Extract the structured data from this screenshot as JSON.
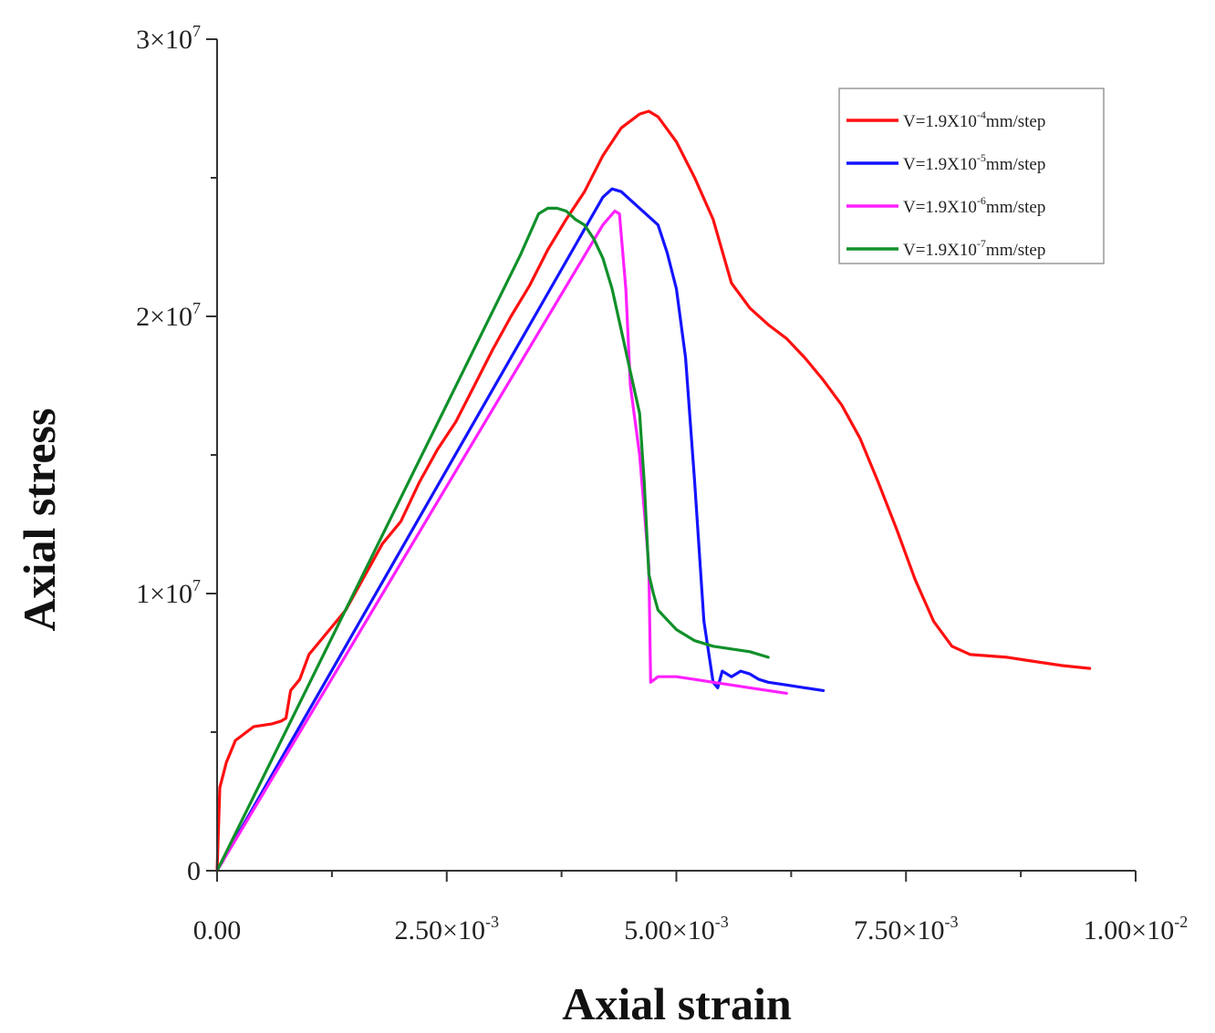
{
  "chart_data": {
    "type": "line",
    "title": "",
    "xlabel": "Axial strain",
    "ylabel": "Axial stress",
    "xlim": [
      0,
      0.01
    ],
    "ylim": [
      0,
      30000000
    ],
    "x_ticks": [
      {
        "value": 0,
        "mant": "0.00",
        "exp": ""
      },
      {
        "value": 0.0025,
        "mant": "2.50×10",
        "exp": "-3"
      },
      {
        "value": 0.005,
        "mant": "5.00×10",
        "exp": "-3"
      },
      {
        "value": 0.0075,
        "mant": "7.50×10",
        "exp": "-3"
      },
      {
        "value": 0.01,
        "mant": "1.00×10",
        "exp": "-2"
      }
    ],
    "y_ticks": [
      {
        "value": 0,
        "mant": "0",
        "exp": ""
      },
      {
        "value": 10000000,
        "mant": "1×10",
        "exp": "7"
      },
      {
        "value": 20000000,
        "mant": "2×10",
        "exp": "7"
      },
      {
        "value": 30000000,
        "mant": "3×10",
        "exp": "7"
      }
    ],
    "legend_position": "top-right",
    "series": [
      {
        "name": "V=1.9X10-4mm/step",
        "label_pre": "V=1.9X10",
        "label_exp": "-4",
        "label_post": "mm/step",
        "color": "#ff1010",
        "x": [
          0,
          3e-05,
          0.0001,
          0.0002,
          0.0004,
          0.0006,
          0.0007,
          0.00075,
          0.0008,
          0.0009,
          0.001,
          0.0012,
          0.0014,
          0.0016,
          0.0018,
          0.002,
          0.0022,
          0.0024,
          0.0026,
          0.0028,
          0.003,
          0.0032,
          0.0034,
          0.0036,
          0.0038,
          0.004,
          0.0042,
          0.0044,
          0.0046,
          0.0047,
          0.0048,
          0.005,
          0.0052,
          0.0054,
          0.0056,
          0.0058,
          0.006,
          0.0062,
          0.0064,
          0.0066,
          0.0068,
          0.007,
          0.0072,
          0.0074,
          0.0076,
          0.0078,
          0.008,
          0.0082,
          0.0084,
          0.0086,
          0.0088,
          0.009,
          0.0092,
          0.0095
        ],
        "y": [
          0,
          3000000,
          3900000,
          4700000,
          5200000,
          5300000,
          5400000,
          5500000,
          6500000,
          6900000,
          7800000,
          8600000,
          9400000,
          10600000,
          11800000,
          12600000,
          14000000,
          15200000,
          16200000,
          17500000,
          18800000,
          20000000,
          21100000,
          22400000,
          23500000,
          24500000,
          25800000,
          26800000,
          27300000,
          27400000,
          27200000,
          26300000,
          25000000,
          23500000,
          21200000,
          20300000,
          19700000,
          19200000,
          18500000,
          17700000,
          16800000,
          15600000,
          14000000,
          12300000,
          10500000,
          9000000,
          8100000,
          7800000,
          7750000,
          7700000,
          7600000,
          7500000,
          7400000,
          7300000
        ]
      },
      {
        "name": "V=1.9X10-5mm/step",
        "label_pre": "V=1.9X10",
        "label_exp": "-5",
        "label_post": "mm/step",
        "color": "#1414ff",
        "x": [
          0,
          0.0042,
          0.0043,
          0.0044,
          0.0045,
          0.0046,
          0.0047,
          0.0048,
          0.0049,
          0.005,
          0.0051,
          0.0052,
          0.0053,
          0.0054,
          0.00545,
          0.0055,
          0.0056,
          0.0057,
          0.0058,
          0.0059,
          0.006,
          0.0062,
          0.0064,
          0.0066
        ],
        "y": [
          0,
          24300000,
          24600000,
          24500000,
          24200000,
          23900000,
          23600000,
          23300000,
          22300000,
          21000000,
          18500000,
          14000000,
          9000000,
          6800000,
          6600000,
          7200000,
          7000000,
          7200000,
          7100000,
          6900000,
          6800000,
          6700000,
          6600000,
          6500000
        ]
      },
      {
        "name": "V=1.9X10-6mm/step",
        "label_pre": "V=1.9X10",
        "label_exp": "-6",
        "label_post": "mm/step",
        "color": "#ff20ff",
        "x": [
          0,
          0.0042,
          0.00433,
          0.00438,
          0.00445,
          0.0045,
          0.0046,
          0.00465,
          0.0047,
          0.00472,
          0.0048,
          0.005,
          0.0052,
          0.0054,
          0.0056,
          0.0058,
          0.006,
          0.0062
        ],
        "y": [
          0,
          23300000,
          23800000,
          23700000,
          21000000,
          17500000,
          15000000,
          13000000,
          11000000,
          6800000,
          7000000,
          7000000,
          6900000,
          6800000,
          6700000,
          6600000,
          6500000,
          6400000
        ],
        "note_unused": false
      },
      {
        "name": "V=1.9X10-7mm/step",
        "label_pre": "V=1.9X10",
        "label_exp": "-7",
        "label_post": "mm/step",
        "color": "#10902a",
        "x": [
          0,
          0.0033,
          0.0035,
          0.0036,
          0.0037,
          0.0038,
          0.0039,
          0.004,
          0.0041,
          0.0042,
          0.0043,
          0.0044,
          0.0045,
          0.0046,
          0.00465,
          0.0047,
          0.00475,
          0.0048,
          0.005,
          0.0052,
          0.0054,
          0.0056,
          0.0058,
          0.006
        ],
        "y": [
          0,
          22200000,
          23700000,
          23900000,
          23900000,
          23800000,
          23500000,
          23300000,
          22800000,
          22100000,
          21000000,
          19500000,
          18000000,
          16500000,
          14000000,
          10700000,
          10000000,
          9400000,
          8700000,
          8300000,
          8100000,
          8000000,
          7900000,
          7700000
        ]
      }
    ]
  }
}
